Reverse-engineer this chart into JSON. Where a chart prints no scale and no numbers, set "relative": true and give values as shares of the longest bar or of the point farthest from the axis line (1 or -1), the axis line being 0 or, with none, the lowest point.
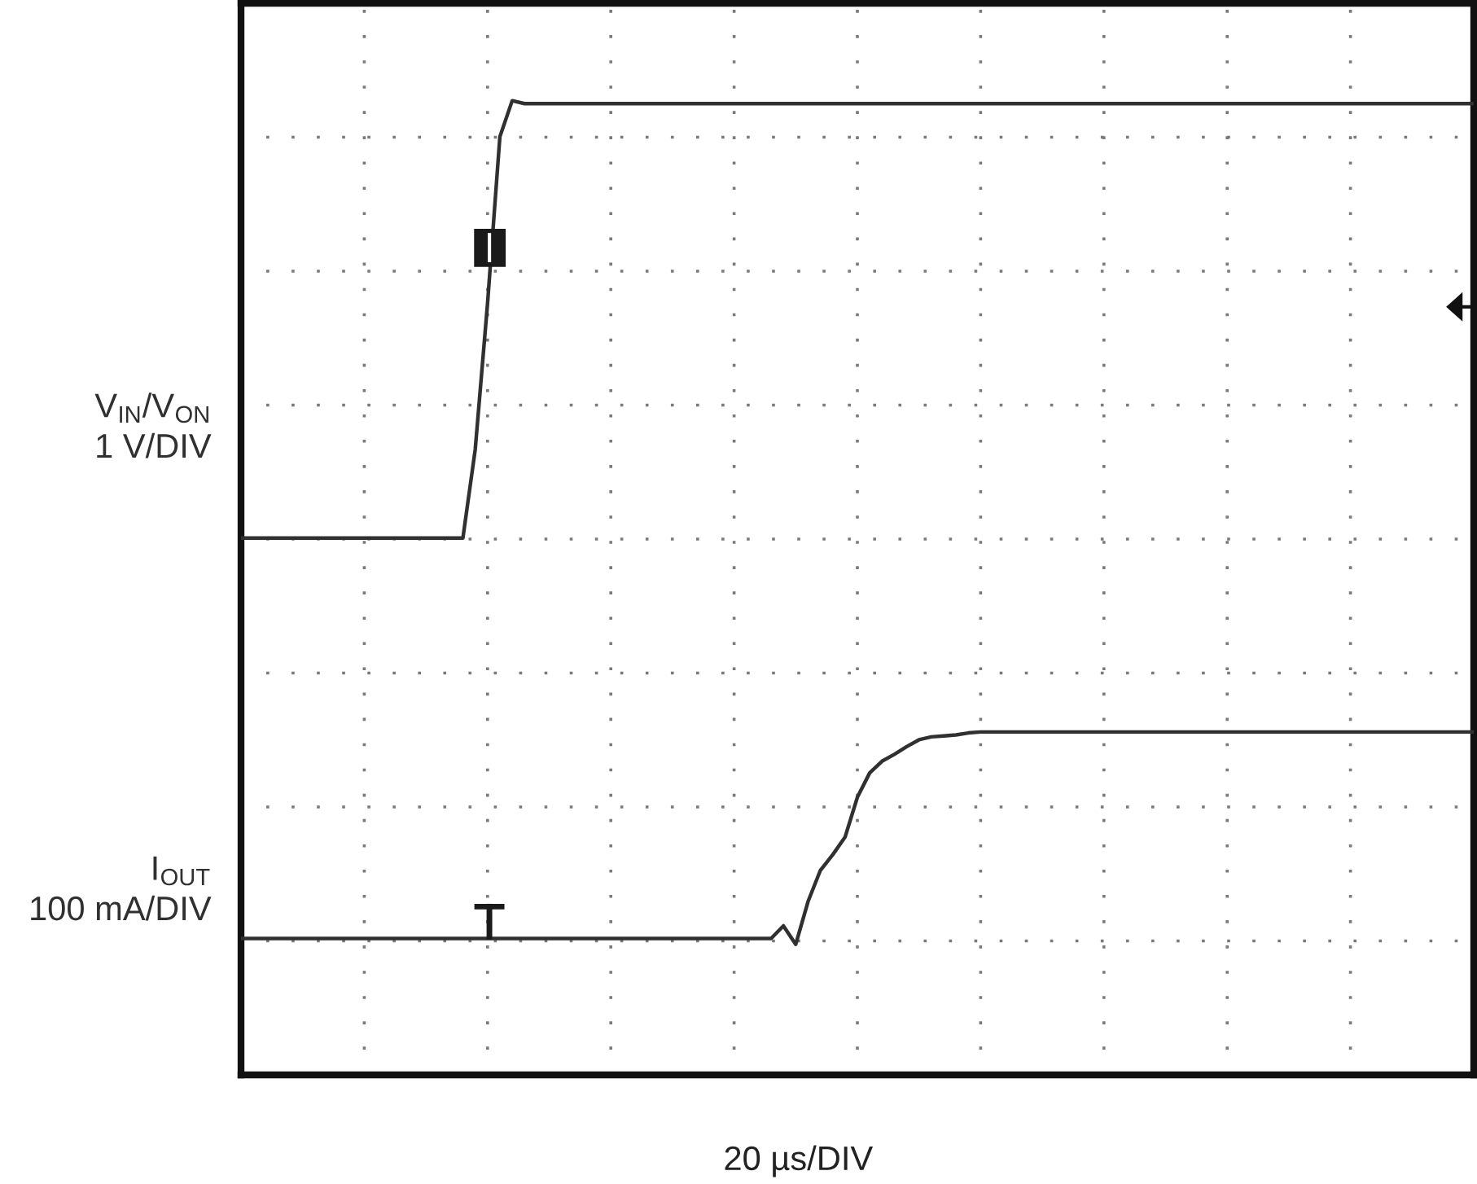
{
  "chart_data": {
    "type": "line",
    "relative": true,
    "xlabel": "20 µs/DIV",
    "grid": true,
    "tick_labels": false,
    "line_style": "solid",
    "categories": [
      null,
      null,
      null,
      null,
      null,
      null,
      null,
      null,
      null,
      null,
      null,
      null,
      null,
      null,
      null,
      null,
      null,
      null,
      null,
      null,
      null,
      null,
      null,
      null,
      null,
      null,
      null,
      null,
      null,
      null,
      null,
      null,
      null,
      null,
      null,
      null,
      null,
      null,
      null,
      null,
      null,
      null,
      null,
      null,
      null,
      null,
      null,
      null,
      null,
      null,
      null,
      null,
      null,
      null,
      null,
      null,
      null,
      null,
      null,
      null,
      null,
      null,
      null,
      null,
      null,
      null,
      null,
      null,
      null,
      null,
      null,
      null,
      null,
      null,
      null,
      null,
      null,
      null,
      null,
      null,
      null,
      null,
      null,
      null,
      null,
      null,
      null,
      null,
      null,
      null,
      null,
      null,
      null,
      null,
      null,
      null,
      null,
      null,
      null,
      null,
      null
    ],
    "series": [
      {
        "name": "V$_{IN}$/V$_{ON}$\n1 V/DIV",
        "color": "#303030",
        "values": [
          0.551,
          0.551,
          0.551,
          0.551,
          0.551,
          0.551,
          0.551,
          0.551,
          0.551,
          0.551,
          0.551,
          0.551,
          0.551,
          0.551,
          0.551,
          0.551,
          0.551,
          0.551,
          0.551,
          0.642,
          0.792,
          0.963,
          1.0,
          0.997,
          0.997,
          0.997,
          0.997,
          0.997,
          0.997,
          0.997,
          0.997,
          0.997,
          0.997,
          0.997,
          0.997,
          0.997,
          0.997,
          0.997,
          0.997,
          0.997,
          0.997,
          0.997,
          0.997,
          0.997,
          0.997,
          0.997,
          0.997,
          0.997,
          0.997,
          0.997,
          0.997,
          0.997,
          0.997,
          0.997,
          0.997,
          0.997,
          0.997,
          0.997,
          0.997,
          0.997,
          0.997,
          0.997,
          0.997,
          0.997,
          0.997,
          0.997,
          0.997,
          0.997,
          0.997,
          0.997,
          0.997,
          0.997,
          0.997,
          0.997,
          0.997,
          0.997,
          0.997,
          0.997,
          0.997,
          0.997,
          0.997,
          0.997,
          0.997,
          0.997,
          0.997,
          0.997,
          0.997,
          0.997,
          0.997,
          0.997,
          0.997,
          0.997,
          0.997,
          0.997,
          0.997,
          0.997,
          0.997,
          0.997,
          0.997,
          0.997,
          0.997
        ]
      },
      {
        "name": "I$_{OUT}$\n100 mA/DIV",
        "color": "#303030",
        "values": [
          0.14,
          0.14,
          0.14,
          0.14,
          0.14,
          0.14,
          0.14,
          0.14,
          0.14,
          0.14,
          0.14,
          0.14,
          0.14,
          0.14,
          0.14,
          0.14,
          0.14,
          0.14,
          0.14,
          0.14,
          0.14,
          0.14,
          0.14,
          0.14,
          0.14,
          0.14,
          0.14,
          0.14,
          0.14,
          0.14,
          0.14,
          0.14,
          0.14,
          0.14,
          0.14,
          0.14,
          0.14,
          0.14,
          0.14,
          0.14,
          0.14,
          0.14,
          0.14,
          0.14,
          0.153,
          0.134,
          0.178,
          0.21,
          0.226,
          0.244,
          0.285,
          0.31,
          0.322,
          0.329,
          0.337,
          0.344,
          0.347,
          0.348,
          0.349,
          0.351,
          0.352,
          0.352,
          0.352,
          0.352,
          0.352,
          0.352,
          0.352,
          0.352,
          0.352,
          0.352,
          0.352,
          0.352,
          0.352,
          0.352,
          0.352,
          0.352,
          0.352,
          0.352,
          0.352,
          0.352,
          0.352,
          0.352,
          0.352,
          0.352,
          0.352,
          0.352,
          0.352,
          0.352,
          0.352,
          0.352,
          0.352,
          0.352,
          0.352,
          0.352,
          0.352,
          0.352,
          0.352,
          0.352,
          0.352,
          0.352,
          0.352
        ]
      }
    ]
  }
}
